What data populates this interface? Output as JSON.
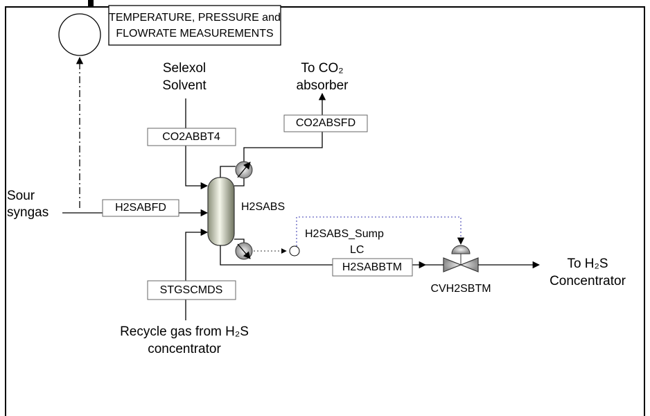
{
  "measurement_box": {
    "lines": [
      "TEMPERATURE, PRESSURE and",
      "FLOWRATE MEASUREMENTS"
    ]
  },
  "inlets": {
    "selexol": [
      "Selexol",
      "Solvent"
    ],
    "sour_syngas": [
      "Sour",
      "syngas"
    ],
    "recycle": [
      "Recycle gas from H₂S",
      "concentrator"
    ]
  },
  "outlets": {
    "co2": [
      "To CO₂",
      "absorber"
    ],
    "h2s": [
      "To H₂S",
      "Concentrator"
    ]
  },
  "streams": [
    "CO2ABBT4",
    "CO2ABSFD",
    "H2SABFD",
    "STGSCMDS",
    "H2SABBTM"
  ],
  "units": {
    "absorber": "H2SABS",
    "controller": [
      "H2SABS_Sump",
      "LC"
    ],
    "valve": "CVH2SBTM"
  }
}
